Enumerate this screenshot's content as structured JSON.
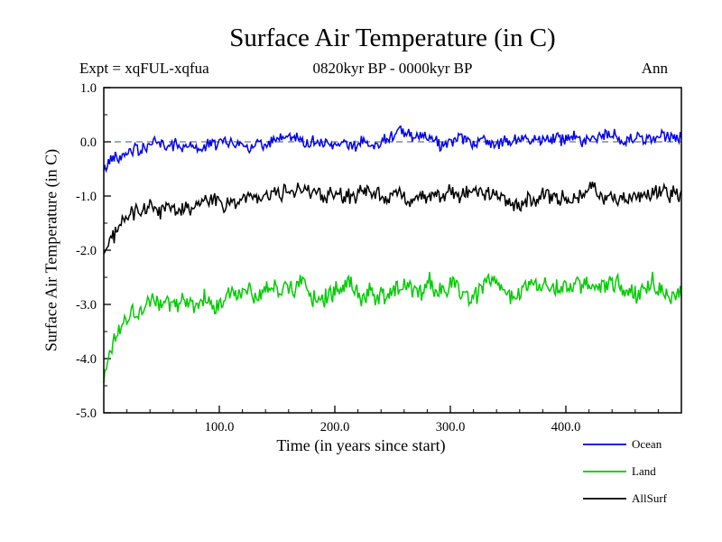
{
  "chart_data": {
    "type": "line",
    "title": "Surface Air Temperature (in C)",
    "subtitle": "0820kyr BP - 0000kyr BP",
    "experiment_label": "Expt = xqFUL-xqfua",
    "season_label": "Ann",
    "xlabel": "Time (in years since start)",
    "ylabel": "Surface Air Temperature (in C)",
    "xlim": [
      0,
      500
    ],
    "ylim": [
      -5.0,
      1.0
    ],
    "x_minor_step": 20,
    "y_minor_step": 0.5,
    "grid": false,
    "legend_position": "bottom-right",
    "xticks": [
      {
        "v": 100,
        "label": "100.0"
      },
      {
        "v": 200,
        "label": "200.0"
      },
      {
        "v": 300,
        "label": "300.0"
      },
      {
        "v": 400,
        "label": "400.0"
      }
    ],
    "yticks": [
      {
        "v": 1.0,
        "label": "1.0"
      },
      {
        "v": 0.0,
        "label": "0.0"
      },
      {
        "v": -1.0,
        "label": "-1.0"
      },
      {
        "v": -2.0,
        "label": "-2.0"
      },
      {
        "v": -3.0,
        "label": "-3.0"
      },
      {
        "v": -4.0,
        "label": "-4.0"
      },
      {
        "v": -5.0,
        "label": "-5.0"
      }
    ],
    "zero_line": {
      "value": 0.0,
      "style": "dashed",
      "color": "#445566"
    },
    "legend": {
      "entries": [
        "Ocean",
        "Land",
        "AllSurf"
      ]
    },
    "series": [
      {
        "name": "Ocean",
        "color": "#0000ee",
        "noise_amp": 0.11,
        "noise_persist": 0.85,
        "seed": 42,
        "trend": [
          [
            0,
            -0.55
          ],
          [
            6,
            -0.35
          ],
          [
            15,
            -0.18
          ],
          [
            30,
            -0.1
          ],
          [
            60,
            -0.06
          ],
          [
            120,
            -0.05
          ],
          [
            180,
            -0.03
          ],
          [
            240,
            0.0
          ],
          [
            265,
            0.08
          ],
          [
            300,
            0.02
          ],
          [
            360,
            0.02
          ],
          [
            420,
            0.04
          ],
          [
            470,
            0.05
          ],
          [
            500,
            0.07
          ]
        ]
      },
      {
        "name": "Land",
        "color": "#00cc00",
        "noise_amp": 0.17,
        "noise_persist": 0.85,
        "seed": 1337,
        "trend": [
          [
            0,
            -4.35
          ],
          [
            6,
            -3.8
          ],
          [
            15,
            -3.3
          ],
          [
            30,
            -3.0
          ],
          [
            60,
            -2.9
          ],
          [
            120,
            -2.85
          ],
          [
            165,
            -2.7
          ],
          [
            172,
            -2.45
          ],
          [
            180,
            -2.8
          ],
          [
            240,
            -2.75
          ],
          [
            300,
            -2.65
          ],
          [
            360,
            -2.75
          ],
          [
            420,
            -2.65
          ],
          [
            470,
            -2.7
          ],
          [
            500,
            -2.7
          ]
        ]
      },
      {
        "name": "AllSurf",
        "color": "#000000",
        "noise_amp": 0.14,
        "noise_persist": 0.85,
        "seed": 2024,
        "trend": [
          [
            0,
            -2.15
          ],
          [
            6,
            -1.8
          ],
          [
            15,
            -1.5
          ],
          [
            30,
            -1.25
          ],
          [
            60,
            -1.15
          ],
          [
            120,
            -1.1
          ],
          [
            165,
            -0.95
          ],
          [
            172,
            -0.75
          ],
          [
            180,
            -1.05
          ],
          [
            240,
            -1.0
          ],
          [
            300,
            -0.95
          ],
          [
            360,
            -1.05
          ],
          [
            420,
            -0.95
          ],
          [
            470,
            -1.0
          ],
          [
            500,
            -0.97
          ]
        ]
      }
    ]
  }
}
